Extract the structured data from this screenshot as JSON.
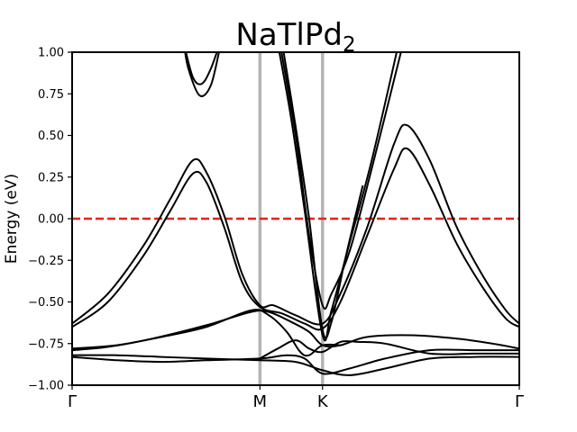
{
  "chart_data": {
    "type": "line",
    "title": "NaTlPd",
    "title_subscript": "2",
    "xlabel": "",
    "ylabel": "Energy (eV)",
    "ylim": [
      -1.0,
      1.0
    ],
    "xlim": [
      0,
      1
    ],
    "yticks": [
      -1.0,
      -0.75,
      -0.5,
      -0.25,
      0.0,
      0.25,
      0.5,
      0.75,
      1.0
    ],
    "ytick_labels": [
      "−1.00",
      "−0.75",
      "−0.50",
      "−0.25",
      "0.00",
      "0.25",
      "0.50",
      "0.75",
      "1.00"
    ],
    "high_symmetry_points": [
      {
        "label": "Γ",
        "x": 0.0
      },
      {
        "label": "M",
        "x": 0.42
      },
      {
        "label": "K",
        "x": 0.56
      },
      {
        "label": "Γ",
        "x": 1.0
      }
    ],
    "vertical_line_color": "#b4b4b4",
    "fermi_level": {
      "y": 0.0,
      "color": "#e8201c",
      "style": "dashed"
    },
    "band_color": "#000000",
    "series": [
      {
        "points": [
          [
            0.0,
            -0.65
          ],
          [
            0.08,
            -0.5
          ],
          [
            0.16,
            -0.22
          ],
          [
            0.22,
            0.05
          ],
          [
            0.27,
            0.27
          ],
          [
            0.3,
            0.22
          ],
          [
            0.34,
            -0.05
          ],
          [
            0.38,
            -0.38
          ],
          [
            0.42,
            -0.53
          ],
          [
            0.47,
            -0.57
          ],
          [
            0.52,
            -0.63
          ],
          [
            0.56,
            -0.66
          ],
          [
            0.6,
            -0.5
          ],
          [
            0.66,
            -0.1
          ],
          [
            0.72,
            0.3
          ],
          [
            0.75,
            0.42
          ],
          [
            0.8,
            0.2
          ],
          [
            0.86,
            -0.15
          ],
          [
            0.92,
            -0.42
          ],
          [
            0.97,
            -0.6
          ],
          [
            1.0,
            -0.65
          ]
        ]
      },
      {
        "points": [
          [
            0.0,
            -0.63
          ],
          [
            0.08,
            -0.45
          ],
          [
            0.16,
            -0.16
          ],
          [
            0.22,
            0.12
          ],
          [
            0.27,
            0.35
          ],
          [
            0.3,
            0.28
          ],
          [
            0.34,
            0.02
          ],
          [
            0.38,
            -0.33
          ],
          [
            0.42,
            -0.52
          ],
          [
            0.45,
            -0.52
          ],
          [
            0.5,
            -0.58
          ],
          [
            0.56,
            -0.63
          ],
          [
            0.6,
            -0.45
          ],
          [
            0.66,
            -0.05
          ],
          [
            0.72,
            0.45
          ],
          [
            0.75,
            0.56
          ],
          [
            0.8,
            0.35
          ],
          [
            0.86,
            -0.05
          ],
          [
            0.92,
            -0.35
          ],
          [
            0.97,
            -0.55
          ],
          [
            1.0,
            -0.63
          ]
        ]
      },
      {
        "points": [
          [
            0.25,
            1.05
          ],
          [
            0.27,
            0.85
          ],
          [
            0.29,
            0.81
          ],
          [
            0.31,
            0.9
          ],
          [
            0.33,
            1.05
          ]
        ]
      },
      {
        "points": [
          [
            0.25,
            1.05
          ],
          [
            0.26,
            0.9
          ],
          [
            0.285,
            0.74
          ],
          [
            0.31,
            0.8
          ],
          [
            0.33,
            1.02
          ]
        ]
      },
      {
        "points": [
          [
            0.465,
            1.05
          ],
          [
            0.5,
            0.5
          ],
          [
            0.53,
            -0.1
          ],
          [
            0.56,
            -0.52
          ],
          [
            0.58,
            -0.45
          ],
          [
            0.62,
            -0.2
          ],
          [
            0.67,
            0.3
          ],
          [
            0.74,
            1.05
          ]
        ]
      },
      {
        "points": [
          [
            0.46,
            1.05
          ],
          [
            0.49,
            0.6
          ],
          [
            0.52,
            0.05
          ],
          [
            0.56,
            -0.7
          ],
          [
            0.58,
            -0.55
          ],
          [
            0.62,
            -0.15
          ],
          [
            0.67,
            0.35
          ],
          [
            0.73,
            1.05
          ]
        ]
      },
      {
        "points": [
          [
            0.47,
            1.05
          ],
          [
            0.5,
            0.55
          ],
          [
            0.53,
            0.0
          ],
          [
            0.56,
            -0.67
          ],
          [
            0.58,
            -0.62
          ],
          [
            0.61,
            -0.25
          ],
          [
            0.65,
            0.2
          ]
        ]
      },
      {
        "points": [
          [
            0.0,
            -0.79
          ],
          [
            0.08,
            -0.77
          ],
          [
            0.18,
            -0.72
          ],
          [
            0.3,
            -0.64
          ],
          [
            0.4,
            -0.56
          ],
          [
            0.44,
            -0.56
          ],
          [
            0.49,
            -0.62
          ],
          [
            0.53,
            -0.68
          ],
          [
            0.56,
            -0.76
          ],
          [
            0.6,
            -0.76
          ],
          [
            0.66,
            -0.71
          ],
          [
            0.76,
            -0.7
          ],
          [
            0.86,
            -0.72
          ],
          [
            0.94,
            -0.75
          ],
          [
            1.0,
            -0.78
          ]
        ]
      },
      {
        "points": [
          [
            0.0,
            -0.78
          ],
          [
            0.1,
            -0.76
          ],
          [
            0.2,
            -0.71
          ],
          [
            0.3,
            -0.65
          ],
          [
            0.4,
            -0.55
          ],
          [
            0.44,
            -0.58
          ],
          [
            0.48,
            -0.68
          ],
          [
            0.51,
            -0.8
          ],
          [
            0.53,
            -0.82
          ],
          [
            0.56,
            -0.76
          ],
          [
            0.6,
            -0.76
          ]
        ]
      },
      {
        "points": [
          [
            0.0,
            -0.83
          ],
          [
            0.1,
            -0.85
          ],
          [
            0.2,
            -0.86
          ],
          [
            0.3,
            -0.85
          ],
          [
            0.42,
            -0.84
          ],
          [
            0.48,
            -0.82
          ],
          [
            0.52,
            -0.84
          ],
          [
            0.56,
            -0.93
          ],
          [
            0.62,
            -0.9
          ],
          [
            0.7,
            -0.84
          ],
          [
            0.8,
            -0.79
          ],
          [
            0.9,
            -0.79
          ],
          [
            1.0,
            -0.79
          ]
        ]
      },
      {
        "points": [
          [
            0.0,
            -0.82
          ],
          [
            0.1,
            -0.82
          ],
          [
            0.2,
            -0.83
          ],
          [
            0.3,
            -0.84
          ],
          [
            0.42,
            -0.85
          ],
          [
            0.5,
            -0.86
          ],
          [
            0.56,
            -0.91
          ],
          [
            0.62,
            -0.94
          ],
          [
            0.7,
            -0.9
          ],
          [
            0.8,
            -0.84
          ],
          [
            0.9,
            -0.83
          ],
          [
            1.0,
            -0.83
          ]
        ]
      },
      {
        "points": [
          [
            0.42,
            -0.84
          ],
          [
            0.46,
            -0.78
          ],
          [
            0.5,
            -0.73
          ],
          [
            0.53,
            -0.78
          ],
          [
            0.56,
            -0.8
          ],
          [
            0.6,
            -0.74
          ],
          [
            0.64,
            -0.74
          ],
          [
            0.7,
            -0.75
          ],
          [
            0.8,
            -0.81
          ],
          [
            0.9,
            -0.81
          ],
          [
            1.0,
            -0.81
          ]
        ]
      }
    ]
  }
}
